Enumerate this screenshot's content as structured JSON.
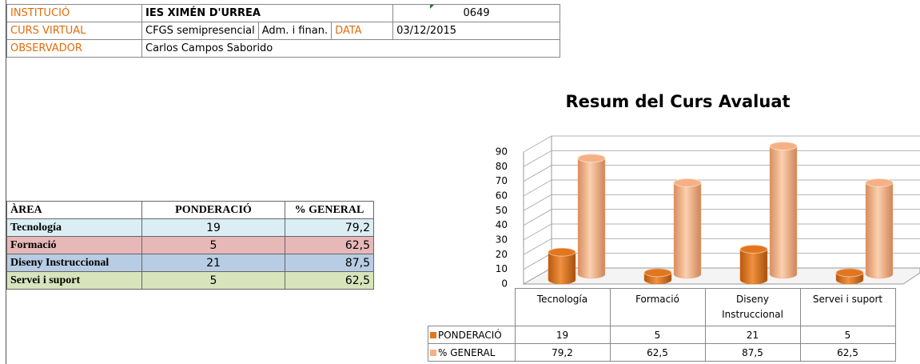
{
  "header": {
    "rows": [
      [
        "INSTITUCIÓ",
        "IES XIMÉN D'URREA",
        "0649"
      ],
      [
        "CURS VIRTUAL",
        "CFGS semipresencial",
        "Adm. i finan.",
        "DATA",
        "03/12/2015"
      ],
      [
        "OBSERVADOR",
        "Carlos Campos Saborido"
      ]
    ]
  },
  "table": {
    "columns": [
      "ÀREA",
      "PONDERACIÓ",
      "% GENERAL"
    ],
    "rows": [
      [
        "Tecnología",
        "19",
        "79,2"
      ],
      [
        "Formació",
        "5",
        "62,5"
      ],
      [
        "Diseny Instruccional",
        "21",
        "87,5"
      ],
      [
        "Servei i suport",
        "5",
        "62,5"
      ]
    ]
  },
  "chart_data": {
    "type": "bar",
    "title": "Resum del Curs Avaluat",
    "categories": [
      "Tecnología",
      "Formació",
      "Diseny Instruccional",
      "Servei i suport"
    ],
    "series": [
      {
        "name": "PONDERACIÓ",
        "color": "#e2761f",
        "values": [
          19,
          5,
          21,
          5
        ],
        "value_labels": [
          "19",
          "5",
          "21",
          "5"
        ]
      },
      {
        "name": "% GENERAL",
        "color": "#f5b184",
        "values": [
          79.2,
          62.5,
          87.5,
          62.5
        ],
        "value_labels": [
          "79,2",
          "62,5",
          "87,5",
          "62,5"
        ]
      }
    ],
    "ylim": [
      0,
      90
    ],
    "yticks": [
      0,
      10,
      20,
      30,
      40,
      50,
      60,
      70,
      80,
      90
    ],
    "grid": true
  }
}
